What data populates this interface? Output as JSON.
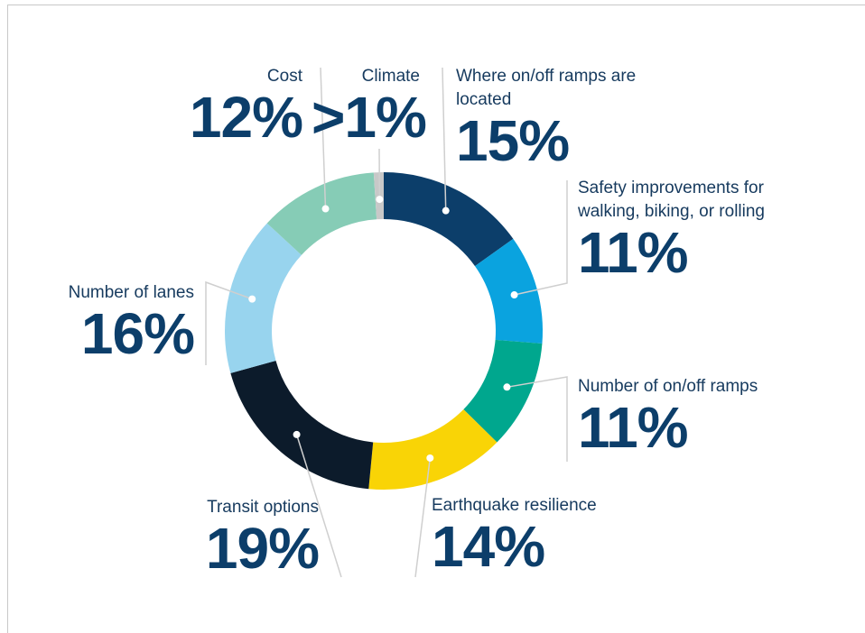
{
  "chart_data": {
    "type": "donut",
    "categories": [
      "Where on/off ramps are located",
      "Safety improvements for walking, biking, or rolling",
      "Number of on/off ramps",
      "Earthquake resilience",
      "Transit options",
      "Number of lanes",
      "Cost",
      "Climate"
    ],
    "values": [
      15,
      11,
      11,
      14,
      19,
      16,
      12,
      1
    ],
    "value_labels": [
      "15%",
      "11%",
      "11%",
      "14%",
      "19%",
      "16%",
      "12%",
      ">1%"
    ],
    "colors": [
      "#0c3e6a",
      "#0aa3df",
      "#00a78e",
      "#f9d406",
      "#0c1b2b",
      "#98d4ee",
      "#86ccb6",
      "#c8c8c8"
    ]
  }
}
